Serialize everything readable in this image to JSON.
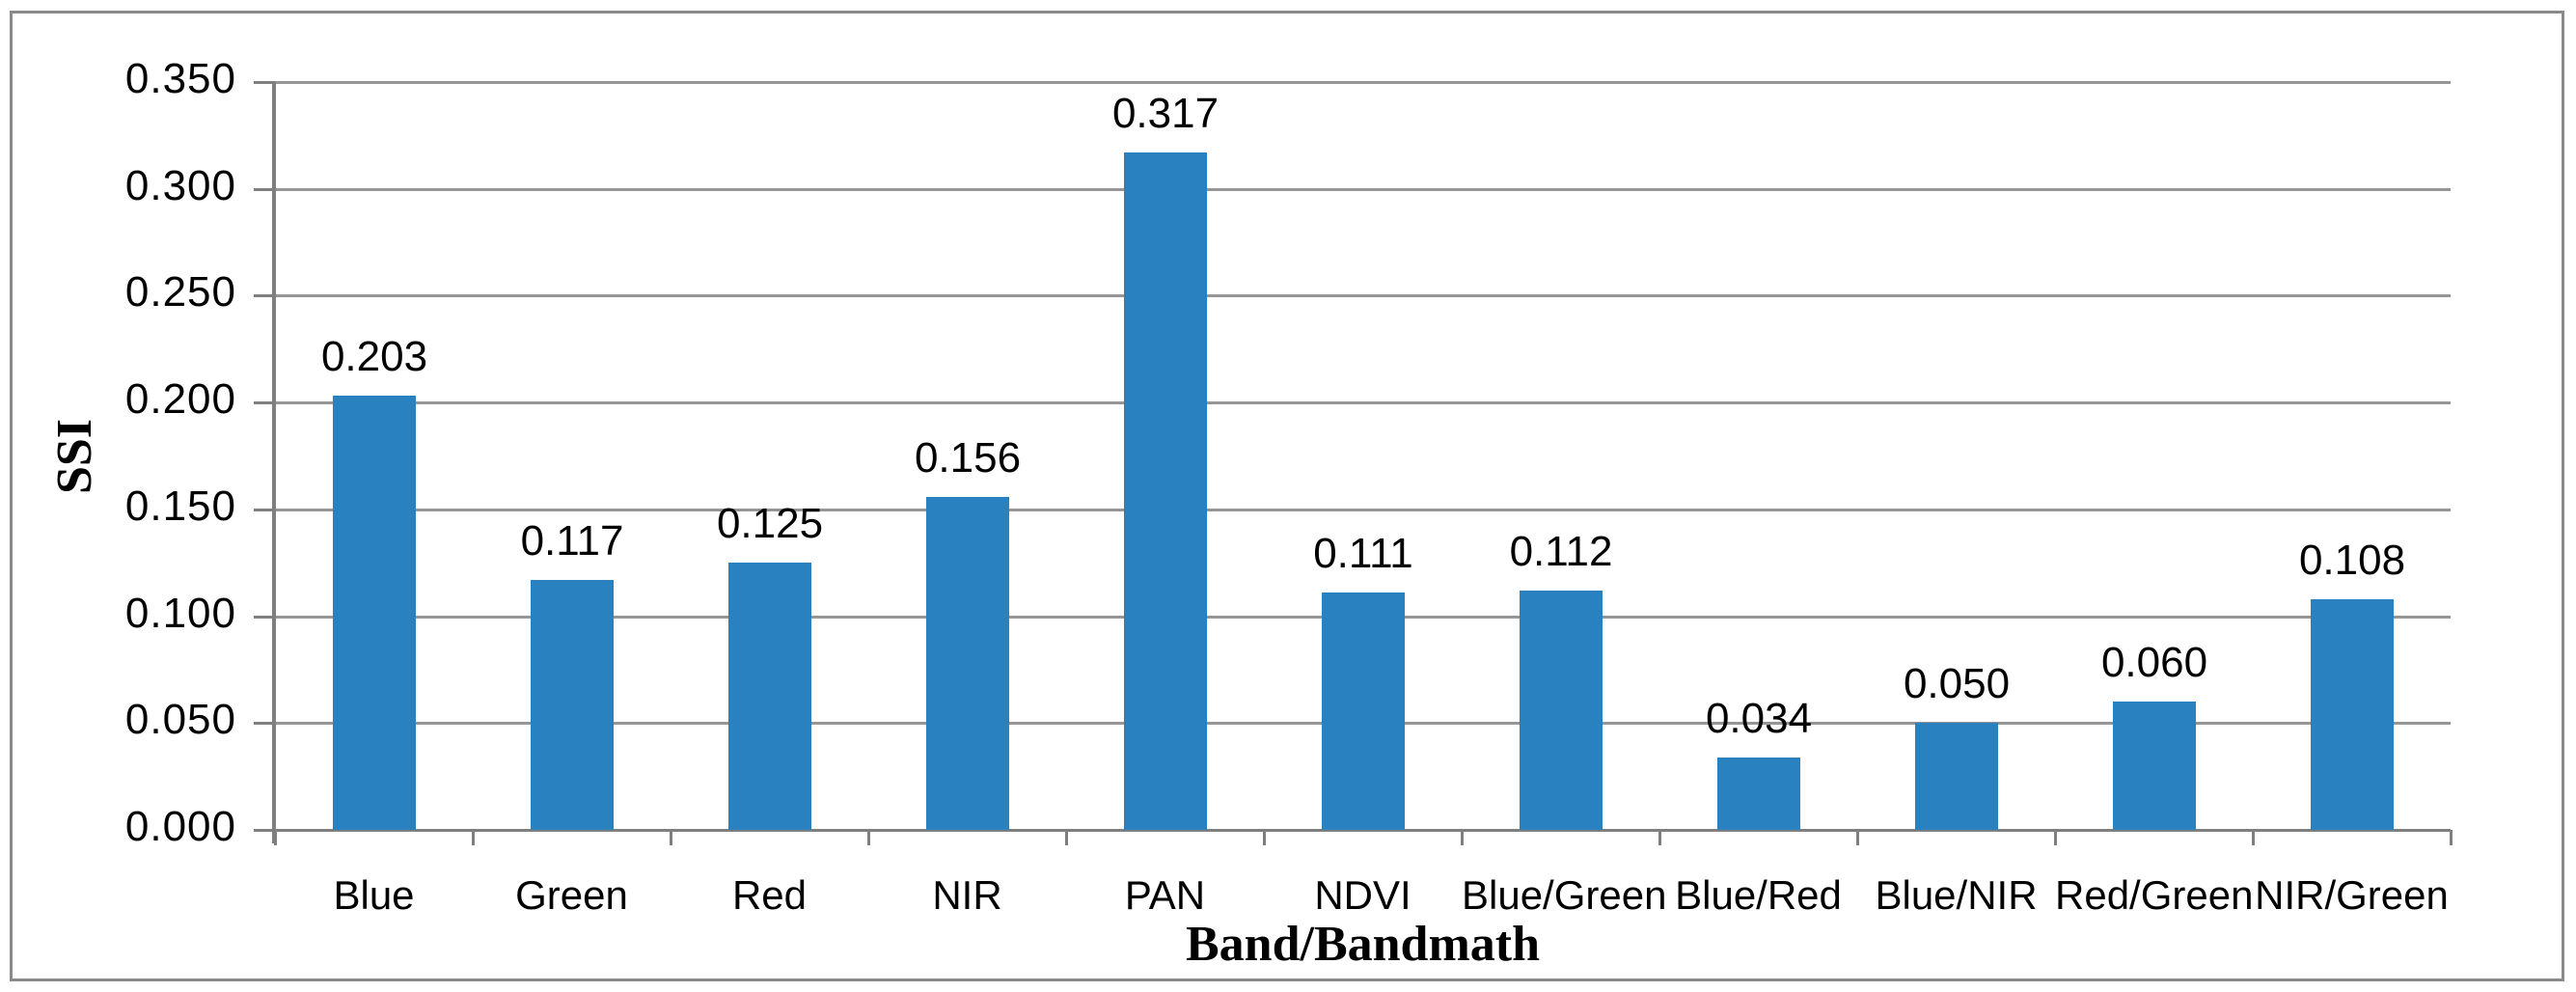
{
  "chart_data": {
    "type": "bar",
    "title": "",
    "categories": [
      "Blue",
      "Green",
      "Red",
      "NIR",
      "PAN",
      "NDVI",
      "Blue/Green",
      "Blue/Red",
      "Blue/NIR",
      "Red/Green",
      "NIR/Green"
    ],
    "values": [
      0.203,
      0.117,
      0.125,
      0.156,
      0.317,
      0.111,
      0.112,
      0.034,
      0.05,
      0.06,
      0.108
    ],
    "data_labels": [
      "0.203",
      "0.117",
      "0.125",
      "0.156",
      "0.317",
      "0.111",
      "0.112",
      "0.034",
      "0.050",
      "0.060",
      "0.108"
    ],
    "xlabel": "Band/Bandmath",
    "ylabel": "SSI",
    "ylim": [
      0,
      0.35
    ],
    "ytick_step": 0.05,
    "ytick_labels": [
      "0.000",
      "0.050",
      "0.100",
      "0.150",
      "0.200",
      "0.250",
      "0.300",
      "0.350"
    ],
    "grid": true,
    "legend_position": "none",
    "colors": {
      "bar": "#2981C0",
      "gridline": "#969696",
      "axis": "#7f7f7f",
      "frame_border": "#8a8a8a",
      "text": "#000000",
      "background": "#ffffff"
    }
  }
}
